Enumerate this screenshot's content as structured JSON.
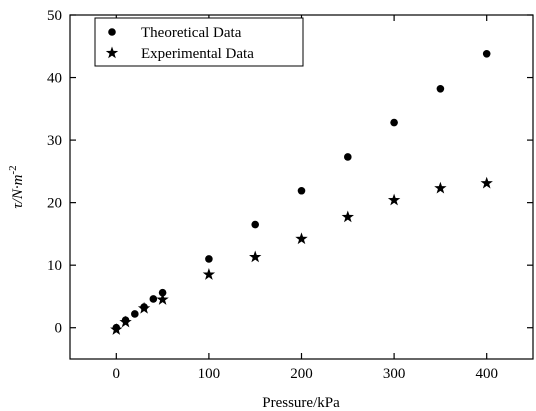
{
  "chart_data": {
    "type": "scatter",
    "xlabel": "Pressure/kPa",
    "ylabel": {
      "main": "τ/N·m",
      "sup": "-2"
    },
    "xlim": [
      -50,
      450
    ],
    "ylim": [
      -5,
      50
    ],
    "xticks": [
      0,
      100,
      200,
      300,
      400
    ],
    "yticks": [
      0,
      10,
      20,
      30,
      40,
      50
    ],
    "grid": false,
    "legend_position": "top-left",
    "series": [
      {
        "name": "Theoretical Data",
        "marker": "circle",
        "color": "#000000",
        "x": [
          0,
          10,
          20,
          30,
          40,
          50,
          100,
          150,
          200,
          250,
          300,
          350,
          400
        ],
        "y": [
          0.0,
          1.2,
          2.2,
          3.3,
          4.6,
          5.6,
          11.0,
          16.5,
          21.9,
          27.3,
          32.8,
          38.2,
          43.8
        ]
      },
      {
        "name": "Experimental Data",
        "marker": "star",
        "color": "#000000",
        "x": [
          0,
          10,
          30,
          50,
          100,
          150,
          200,
          250,
          300,
          350,
          400
        ],
        "y": [
          -0.3,
          0.9,
          3.1,
          4.5,
          8.5,
          11.3,
          14.2,
          17.7,
          20.4,
          22.3,
          23.1
        ]
      }
    ]
  }
}
